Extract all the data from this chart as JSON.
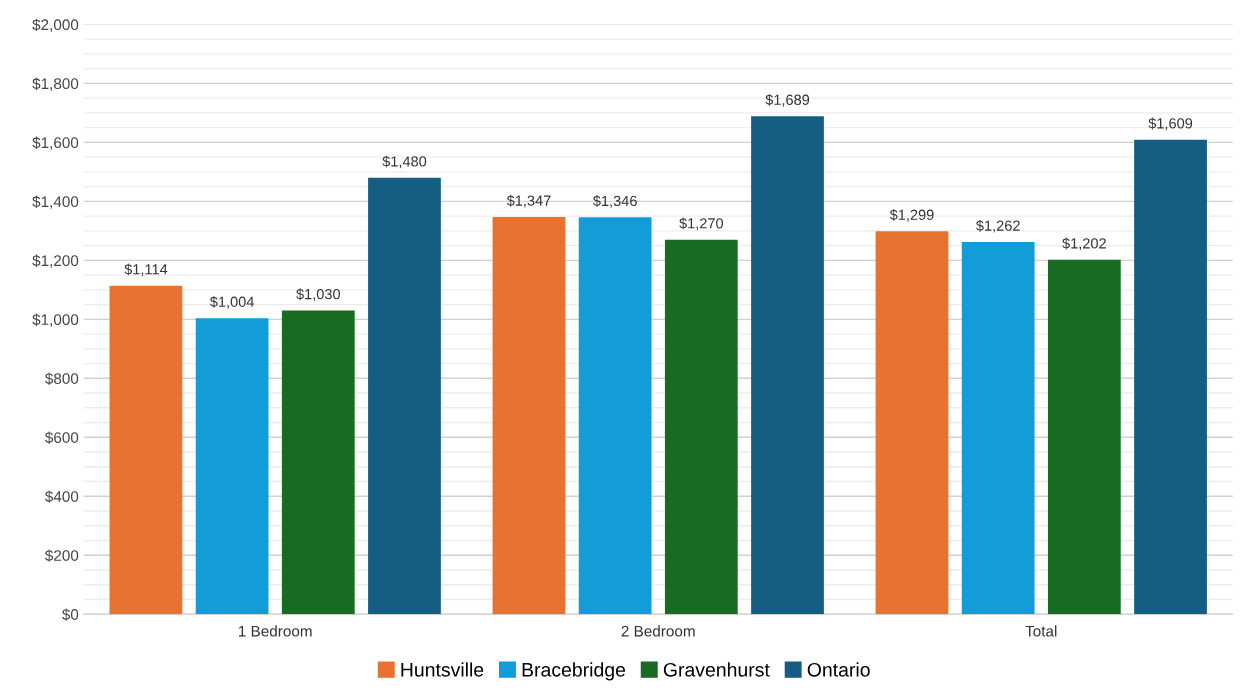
{
  "chart_data": {
    "type": "bar",
    "categories": [
      "1 Bedroom",
      "2 Bedroom",
      "Total"
    ],
    "series": [
      {
        "name": "Huntsville",
        "color": "#e8722f",
        "values": [
          1114,
          1347,
          1299
        ]
      },
      {
        "name": "Bracebridge",
        "color": "#129cd8",
        "values": [
          1004,
          1346,
          1262
        ]
      },
      {
        "name": "Gravenhurst",
        "color": "#196b24",
        "values": [
          1030,
          1270,
          1202
        ]
      },
      {
        "name": "Ontario",
        "color": "#155e82",
        "values": [
          1480,
          1689,
          1609
        ]
      }
    ],
    "ylim": [
      0,
      2000
    ],
    "yticks": [
      {
        "value": 0,
        "label": "$0"
      },
      {
        "value": 200,
        "label": "$200"
      },
      {
        "value": 400,
        "label": "$400"
      },
      {
        "value": 600,
        "label": "$600"
      },
      {
        "value": 800,
        "label": "$800"
      },
      {
        "value": 1000,
        "label": "$1,000"
      },
      {
        "value": 1200,
        "label": "$1,200"
      },
      {
        "value": 1400,
        "label": "$1,400"
      },
      {
        "value": 1600,
        "label": "$1,600"
      },
      {
        "value": 1800,
        "label": "$1,800"
      },
      {
        "value": 2000,
        "label": "$2,000"
      }
    ],
    "value_labels": [
      [
        "$1,114",
        "$1,347",
        "$1,299"
      ],
      [
        "$1,004",
        "$1,346",
        "$1,262"
      ],
      [
        "$1,030",
        "$1,270",
        "$1,202"
      ],
      [
        "$1,480",
        "$1,689",
        "$1,609"
      ]
    ],
    "grid": "y",
    "legend": "bottom"
  }
}
